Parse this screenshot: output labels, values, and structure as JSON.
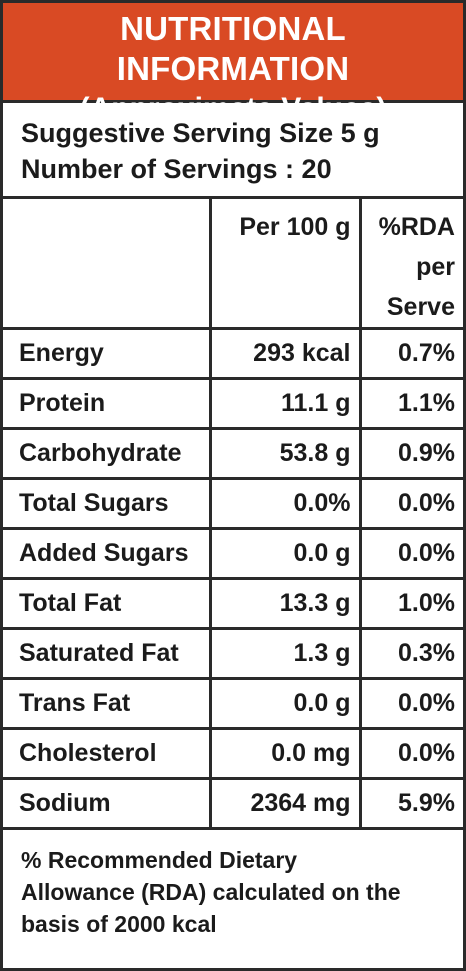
{
  "header": {
    "title": "NUTRITIONAL INFORMATION",
    "subtitle": "(Approximate Values)",
    "background_color": "#d94a24"
  },
  "serving": {
    "size": "Suggestive Serving Size 5 g",
    "count": "Number of Servings : 20"
  },
  "table": {
    "columns": [
      "",
      "Per 100 g",
      "%RDA per Serve"
    ],
    "column_lines": {
      "per100": "Per 100 g",
      "rda_1": "%RDA",
      "rda_2": "per",
      "rda_3": "Serve"
    },
    "rows": [
      {
        "nutrient": "Energy",
        "per100": "293 kcal",
        "rda": "0.7%"
      },
      {
        "nutrient": "Protein",
        "per100": "11.1 g",
        "rda": "1.1%"
      },
      {
        "nutrient": "Carbohydrate",
        "per100": "53.8 g",
        "rda": "0.9%"
      },
      {
        "nutrient": "Total Sugars",
        "per100": "0.0%",
        "rda": "0.0%"
      },
      {
        "nutrient": "Added Sugars",
        "per100": "0.0 g",
        "rda": "0.0%"
      },
      {
        "nutrient": "Total Fat",
        "per100": "13.3 g",
        "rda": "1.0%"
      },
      {
        "nutrient": "Saturated Fat",
        "per100": "1.3 g",
        "rda": "0.3%"
      },
      {
        "nutrient": "Trans Fat",
        "per100": "0.0 g",
        "rda": "0.0%"
      },
      {
        "nutrient": "Cholesterol",
        "per100": "0.0 mg",
        "rda": "0.0%"
      },
      {
        "nutrient": "Sodium",
        "per100": "2364 mg",
        "rda": "5.9%"
      }
    ]
  },
  "footer": {
    "line1": "% Recommended Dietary",
    "line2": "Allowance (RDA) calculated on the",
    "line3": "basis of 2000 kcal"
  }
}
